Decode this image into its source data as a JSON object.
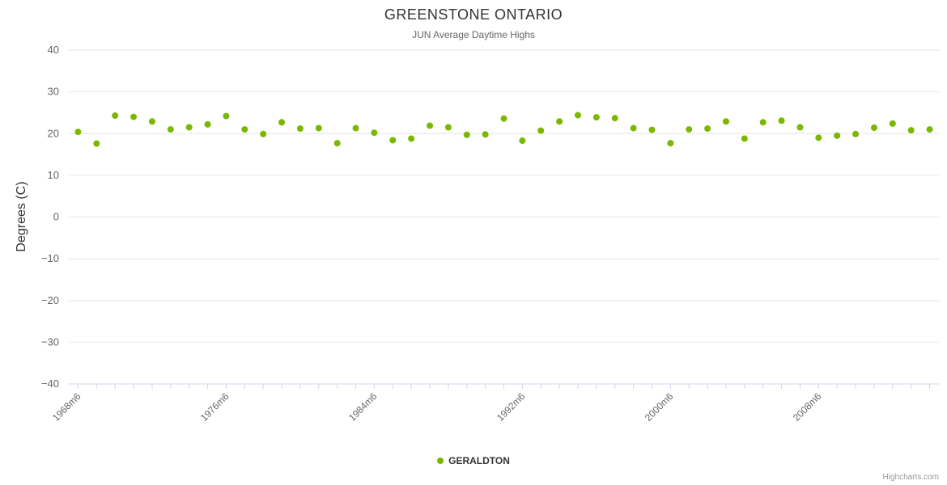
{
  "title": "GREENSTONE ONTARIO",
  "subtitle": "JUN Average Daytime Highs",
  "ylabel": "Degrees (C)",
  "legend": {
    "label": "GERALDTON",
    "marker_color": "#7ab800"
  },
  "credit": "Highcharts.com",
  "colors": {
    "point": "#7ab800",
    "gridline": "#e6e6e6",
    "axis_line": "#ccd6eb",
    "tick_label": "#666666"
  },
  "chart_data": {
    "type": "scatter",
    "title": "GREENSTONE ONTARIO",
    "subtitle": "JUN Average Daytime Highs",
    "ylabel": "Degrees (C)",
    "xlabel": "",
    "grid": true,
    "legend_position": "bottom",
    "xlim": [
      1967.5,
      2014.5
    ],
    "ylim": [
      -40,
      40
    ],
    "y_ticks": [
      40,
      30,
      20,
      10,
      0,
      -10,
      -20,
      -30,
      -40
    ],
    "x_tick_years": [
      1968,
      1976,
      1984,
      1992,
      2000,
      2008
    ],
    "x_tick_labels": [
      "1968m6",
      "1976m6",
      "1984m6",
      "1992m6",
      "2000m6",
      "2008m6"
    ],
    "minor_tick_step": 1,
    "series": [
      {
        "name": "GERALDTON",
        "color": "#7ab800",
        "x": [
          1968,
          1969,
          1970,
          1971,
          1972,
          1973,
          1974,
          1975,
          1976,
          1977,
          1978,
          1979,
          1980,
          1981,
          1982,
          1983,
          1984,
          1985,
          1986,
          1987,
          1988,
          1989,
          1990,
          1991,
          1992,
          1993,
          1994,
          1995,
          1996,
          1997,
          1998,
          1999,
          2000,
          2001,
          2002,
          2003,
          2004,
          2005,
          2006,
          2007,
          2008,
          2009,
          2010,
          2011,
          2012,
          2013,
          2014
        ],
        "y": [
          20.4,
          17.6,
          24.3,
          24.0,
          22.9,
          21.0,
          21.5,
          22.2,
          24.2,
          21.0,
          19.9,
          22.7,
          21.2,
          21.3,
          17.7,
          21.3,
          20.2,
          18.4,
          18.8,
          21.9,
          21.5,
          19.7,
          19.8,
          23.6,
          18.3,
          20.7,
          22.9,
          24.4,
          23.9,
          23.7,
          21.3,
          20.9,
          17.7,
          21.0,
          21.2,
          22.9,
          18.8,
          22.7,
          23.1,
          21.5,
          19.0,
          19.5,
          19.9,
          21.4,
          22.4,
          20.8,
          21.0
        ]
      }
    ]
  }
}
